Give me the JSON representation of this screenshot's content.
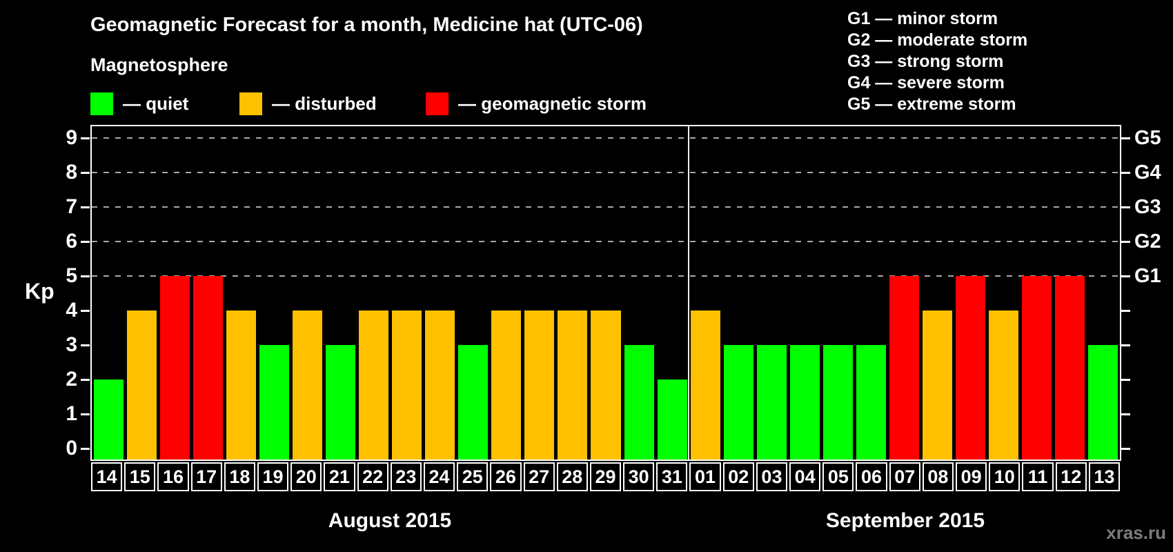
{
  "chart_data": {
    "type": "bar",
    "title": "Geomagnetic Forecast for a month, Medicine hat (UTC-06)",
    "ylabel": "Kp",
    "ylim": [
      0,
      9
    ],
    "yticks": [
      0,
      1,
      2,
      3,
      4,
      5,
      6,
      7,
      8,
      9
    ],
    "grid": "dashed horizontal gridlines at Kp 5-9 only",
    "grid_dashed_at_kp": [
      5,
      6,
      7,
      8,
      9
    ],
    "legend_position": "top",
    "right_axis": [
      {
        "kp": 5,
        "label": "G1"
      },
      {
        "kp": 6,
        "label": "G2"
      },
      {
        "kp": 7,
        "label": "G3"
      },
      {
        "kp": 8,
        "label": "G4"
      },
      {
        "kp": 9,
        "label": "G5"
      }
    ],
    "status_colors": {
      "quiet": "#00ff00",
      "disturbed": "#ffc000",
      "storm": "#ff0000"
    },
    "groups": [
      {
        "label": "August 2015",
        "days": [
          {
            "day": "14",
            "kp": 2,
            "status": "quiet"
          },
          {
            "day": "15",
            "kp": 4,
            "status": "disturbed"
          },
          {
            "day": "16",
            "kp": 5,
            "status": "storm"
          },
          {
            "day": "17",
            "kp": 5,
            "status": "storm"
          },
          {
            "day": "18",
            "kp": 4,
            "status": "disturbed"
          },
          {
            "day": "19",
            "kp": 3,
            "status": "quiet"
          },
          {
            "day": "20",
            "kp": 4,
            "status": "disturbed"
          },
          {
            "day": "21",
            "kp": 3,
            "status": "quiet"
          },
          {
            "day": "22",
            "kp": 4,
            "status": "disturbed"
          },
          {
            "day": "23",
            "kp": 4,
            "status": "disturbed"
          },
          {
            "day": "24",
            "kp": 4,
            "status": "disturbed"
          },
          {
            "day": "25",
            "kp": 3,
            "status": "quiet"
          },
          {
            "day": "26",
            "kp": 4,
            "status": "disturbed"
          },
          {
            "day": "27",
            "kp": 4,
            "status": "disturbed"
          },
          {
            "day": "28",
            "kp": 4,
            "status": "disturbed"
          },
          {
            "day": "29",
            "kp": 4,
            "status": "disturbed"
          },
          {
            "day": "30",
            "kp": 3,
            "status": "quiet"
          },
          {
            "day": "31",
            "kp": 2,
            "status": "quiet"
          }
        ]
      },
      {
        "label": "September 2015",
        "days": [
          {
            "day": "01",
            "kp": 4,
            "status": "disturbed"
          },
          {
            "day": "02",
            "kp": 3,
            "status": "quiet"
          },
          {
            "day": "03",
            "kp": 3,
            "status": "quiet"
          },
          {
            "day": "04",
            "kp": 3,
            "status": "quiet"
          },
          {
            "day": "05",
            "kp": 3,
            "status": "quiet"
          },
          {
            "day": "06",
            "kp": 3,
            "status": "quiet"
          },
          {
            "day": "07",
            "kp": 5,
            "status": "storm"
          },
          {
            "day": "08",
            "kp": 4,
            "status": "disturbed"
          },
          {
            "day": "09",
            "kp": 5,
            "status": "storm"
          },
          {
            "day": "10",
            "kp": 4,
            "status": "disturbed"
          },
          {
            "day": "11",
            "kp": 5,
            "status": "storm"
          },
          {
            "day": "12",
            "kp": 5,
            "status": "storm"
          },
          {
            "day": "13",
            "kp": 3,
            "status": "quiet"
          }
        ]
      }
    ]
  },
  "legend": {
    "heading": "Magnetosphere",
    "items": [
      {
        "key": "quiet",
        "label": "— quiet",
        "color": "#00ff00"
      },
      {
        "key": "disturbed",
        "label": "— disturbed",
        "color": "#ffc000"
      },
      {
        "key": "storm",
        "label": "— geomagnetic storm",
        "color": "#ff0000"
      }
    ]
  },
  "g_scale_legend": [
    "G1 — minor storm",
    "G2 — moderate storm",
    "G3 — strong storm",
    "G4 — severe storm",
    "G5 — extreme storm"
  ],
  "watermark": "xras.ru",
  "colors": {
    "background": "#000000",
    "text": "#ffffff",
    "grid": "#aaaaaa",
    "frame": "#ffffff",
    "watermark": "#7d7d7d"
  }
}
